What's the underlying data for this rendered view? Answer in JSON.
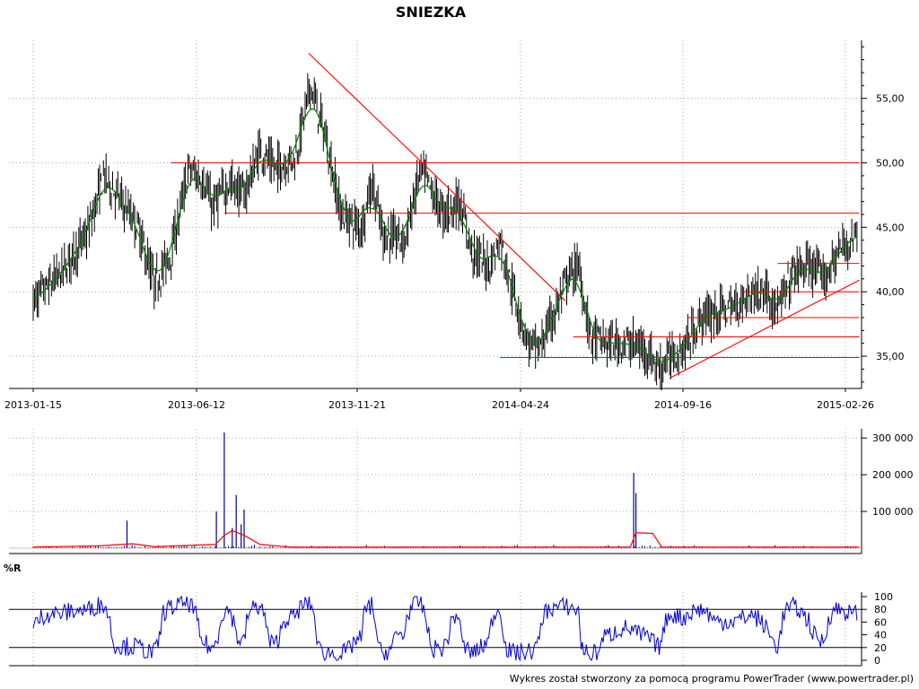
{
  "chart_data": [
    {
      "type": "candlestick",
      "title": "SNIEZKA",
      "x_tick_labels": [
        "2013-01-15",
        "2013-06-12",
        "2013-11-21",
        "2014-04-24",
        "2014-09-16",
        "2015-02-26"
      ],
      "y_tick_labels": [
        "35,00",
        "40,00",
        "45,00",
        "50,00",
        "55,00"
      ],
      "y_ticks": [
        35,
        40,
        45,
        50,
        55
      ],
      "ylim": [
        32.5,
        59.5
      ],
      "grid": true,
      "close_path": [
        [
          "2013-01-15",
          39.2
        ],
        [
          "2013-02-10",
          41.5
        ],
        [
          "2013-03-05",
          44.5
        ],
        [
          "2013-03-20",
          49.0
        ],
        [
          "2013-04-05",
          47.0
        ],
        [
          "2013-04-20",
          45.0
        ],
        [
          "2013-05-05",
          40.5
        ],
        [
          "2013-05-20",
          43.0
        ],
        [
          "2013-06-05",
          49.5
        ],
        [
          "2013-06-20",
          48.5
        ],
        [
          "2013-06-28",
          46.5
        ],
        [
          "2013-07-15",
          48.5
        ],
        [
          "2013-07-30",
          47.5
        ],
        [
          "2013-08-15",
          51.0
        ],
        [
          "2013-08-30",
          49.5
        ],
        [
          "2013-09-20",
          50.5
        ],
        [
          "2013-10-05",
          56.0
        ],
        [
          "2013-10-20",
          52.0
        ],
        [
          "2013-11-05",
          46.0
        ],
        [
          "2013-11-25",
          45.0
        ],
        [
          "2013-12-05",
          48.5
        ],
        [
          "2013-12-15",
          44.5
        ],
        [
          "2014-01-05",
          44.0
        ],
        [
          "2014-01-20",
          49.5
        ],
        [
          "2014-02-10",
          46.0
        ],
        [
          "2014-02-25",
          47.0
        ],
        [
          "2014-03-10",
          43.0
        ],
        [
          "2014-03-25",
          42.0
        ],
        [
          "2014-04-05",
          44.0
        ],
        [
          "2014-04-15",
          40.5
        ],
        [
          "2014-05-01",
          36.0
        ],
        [
          "2014-05-10",
          35.5
        ],
        [
          "2014-05-25",
          38.5
        ],
        [
          "2014-06-05",
          41.0
        ],
        [
          "2014-06-15",
          42.0
        ],
        [
          "2014-06-25",
          36.5
        ],
        [
          "2014-07-10",
          36.0
        ],
        [
          "2014-07-30",
          36.0
        ],
        [
          "2014-08-15",
          35.5
        ],
        [
          "2014-08-25",
          34.0
        ],
        [
          "2014-09-05",
          35.0
        ],
        [
          "2014-09-16",
          35.5
        ],
        [
          "2014-10-05",
          38.0
        ],
        [
          "2014-10-25",
          38.5
        ],
        [
          "2014-11-10",
          39.0
        ],
        [
          "2014-11-25",
          40.0
        ],
        [
          "2014-12-10",
          40.0
        ],
        [
          "2014-12-20",
          38.5
        ],
        [
          "2015-01-05",
          41.5
        ],
        [
          "2015-01-20",
          42.0
        ],
        [
          "2015-02-05",
          41.0
        ],
        [
          "2015-02-18",
          43.0
        ],
        [
          "2015-03-10",
          44.5
        ]
      ],
      "horizontal_levels": [
        {
          "y": 50.0,
          "from": "2013-05-20",
          "to": "2015-03-12"
        },
        {
          "y": 46.1,
          "from": "2013-07-10",
          "to": "2015-03-12"
        },
        {
          "y": 42.2,
          "from": "2014-12-20",
          "to": "2015-03-12"
        },
        {
          "y": 40.0,
          "from": "2014-11-15",
          "to": "2015-03-12"
        },
        {
          "y": 38.0,
          "from": "2014-09-21",
          "to": "2015-03-12"
        },
        {
          "y": 36.5,
          "from": "2014-06-10",
          "to": "2015-03-12"
        },
        {
          "y": 34.9,
          "from": "2014-04-05",
          "to": "2015-03-12"
        }
      ],
      "trend_lines": [
        {
          "from": [
            "2013-10-03",
            58.5
          ],
          "to": [
            "2014-06-03",
            39.3
          ]
        },
        {
          "from": [
            "2014-09-04",
            33.3
          ],
          "to": [
            "2015-03-12",
            40.9
          ]
        }
      ],
      "colors": {
        "candles": "#000000",
        "moving_average": "#008000",
        "levels": "#ff0000",
        "grid": "#aaaaaa"
      }
    },
    {
      "type": "bar",
      "y_tick_labels": [
        "100 000",
        "200 000",
        "300 000"
      ],
      "y_ticks": [
        100000,
        200000,
        300000
      ],
      "ylim": [
        0,
        325000
      ],
      "spikes": [
        {
          "date": "2013-04-10",
          "value": 75000
        },
        {
          "date": "2013-07-02",
          "value": 100000
        },
        {
          "date": "2013-07-10",
          "value": 315000
        },
        {
          "date": "2013-07-18",
          "value": 55000
        },
        {
          "date": "2013-07-22",
          "value": 145000
        },
        {
          "date": "2013-07-27",
          "value": 65000
        },
        {
          "date": "2013-07-30",
          "value": 105000
        },
        {
          "date": "2014-08-03",
          "value": 205000
        },
        {
          "date": "2014-08-05",
          "value": 150000
        }
      ],
      "average_path": [
        [
          "2013-01-15",
          3000
        ],
        [
          "2013-03-15",
          6000
        ],
        [
          "2013-04-15",
          12000
        ],
        [
          "2013-05-05",
          4000
        ],
        [
          "2013-07-01",
          10000
        ],
        [
          "2013-07-10",
          35000
        ],
        [
          "2013-07-18",
          48000
        ],
        [
          "2013-07-30",
          35000
        ],
        [
          "2013-08-15",
          10000
        ],
        [
          "2013-09-15",
          3000
        ],
        [
          "2014-07-31",
          3000
        ],
        [
          "2014-08-05",
          42000
        ],
        [
          "2014-08-20",
          40000
        ],
        [
          "2014-08-28",
          3000
        ],
        [
          "2015-03-12",
          3000
        ]
      ],
      "colors": {
        "bars": "#00008b",
        "average": "#ff0000"
      }
    },
    {
      "type": "line",
      "title": "%R",
      "y_tick_labels": [
        "0",
        "20",
        "40",
        "60",
        "80",
        "100"
      ],
      "y_ticks": [
        0,
        20,
        40,
        60,
        80,
        100
      ],
      "reference_levels": [
        20,
        80
      ],
      "ylim": [
        0,
        100
      ],
      "colors": {
        "line": "#0000cd",
        "reference": "#000000"
      }
    }
  ],
  "footer": "Wykres został stworzony za pomocą programu PowerTrader (www.powertrader.pl)"
}
